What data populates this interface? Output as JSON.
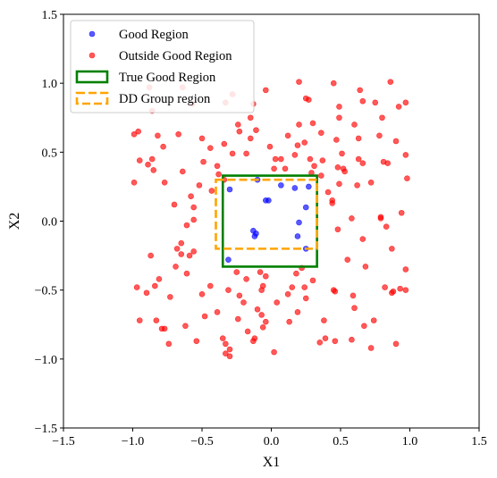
{
  "chart_data": {
    "type": "scatter",
    "title": "",
    "xlabel": "X1",
    "ylabel": "X2",
    "xlim": [
      -1.5,
      1.5
    ],
    "ylim": [
      -1.5,
      1.5
    ],
    "xticks": [
      "−1.5",
      "−1.0",
      "−0.5",
      "0.0",
      "0.5",
      "1.0",
      "1.5"
    ],
    "yticks": [
      "−1.5",
      "−1.0",
      "−0.5",
      "0.0",
      "0.5",
      "1.0",
      "1.5"
    ],
    "xtick_values": [
      -1.5,
      -1.0,
      -0.5,
      0.0,
      0.5,
      1.0,
      1.5
    ],
    "ytick_values": [
      -1.5,
      -1.0,
      -0.5,
      0.0,
      0.5,
      1.0,
      1.5
    ],
    "grid": false,
    "legend_position": "top-left",
    "legend": [
      {
        "label": "Good Region",
        "kind": "marker",
        "color": "#0000ff"
      },
      {
        "label": "Outside Good Region",
        "kind": "marker",
        "color": "#ff0000"
      },
      {
        "label": "True Good Region",
        "kind": "solid-box",
        "color": "#008000"
      },
      {
        "label": "DD Group region",
        "kind": "dashed-box",
        "color": "#ffa500"
      }
    ],
    "regions": [
      {
        "name": "True Good Region",
        "style": "solid",
        "color": "#008000",
        "x": [
          -0.35,
          0.33
        ],
        "y": [
          -0.33,
          0.33
        ]
      },
      {
        "name": "DD Group region",
        "style": "dashed",
        "color": "#ffa500",
        "x": [
          -0.4,
          0.33
        ],
        "y": [
          -0.2,
          0.3
        ]
      }
    ],
    "series": [
      {
        "name": "Good Region",
        "color": "#0000ff",
        "points": [
          [
            -0.3,
            0.23
          ],
          [
            -0.1,
            0.3
          ],
          [
            0.07,
            0.26
          ],
          [
            0.17,
            0.24
          ],
          [
            0.27,
            0.25
          ],
          [
            0.25,
            0.1
          ],
          [
            -0.04,
            0.15
          ],
          [
            -0.02,
            0.15
          ],
          [
            0.2,
            -0.01
          ],
          [
            -0.13,
            -0.07
          ],
          [
            -0.12,
            -0.11
          ],
          [
            -0.11,
            -0.09
          ],
          [
            0.19,
            -0.11
          ],
          [
            0.25,
            -0.2
          ],
          [
            -0.31,
            -0.28
          ]
        ]
      },
      {
        "name": "Outside Good Region",
        "color": "#ff0000",
        "points": [
          [
            -0.88,
            0.97
          ],
          [
            -0.86,
            0.8
          ],
          [
            -0.64,
            0.97
          ],
          [
            -0.57,
            0.85
          ],
          [
            -0.33,
            0.86
          ],
          [
            -0.28,
            0.92
          ],
          [
            -0.13,
            0.85
          ],
          [
            -0.04,
            0.95
          ],
          [
            0.2,
            1.01
          ],
          [
            0.25,
            0.89
          ],
          [
            0.27,
            0.88
          ],
          [
            0.45,
            1.0
          ],
          [
            0.49,
            0.83
          ],
          [
            0.49,
            0.75
          ],
          [
            0.64,
            0.95
          ],
          [
            0.66,
            0.87
          ],
          [
            0.75,
            0.86
          ],
          [
            0.8,
            0.75
          ],
          [
            0.86,
            1.01
          ],
          [
            0.92,
            0.83
          ],
          [
            0.97,
            0.86
          ],
          [
            -0.99,
            0.63
          ],
          [
            -0.96,
            0.65
          ],
          [
            -0.82,
            0.62
          ],
          [
            -0.78,
            0.54
          ],
          [
            -0.67,
            0.63
          ],
          [
            -0.5,
            0.6
          ],
          [
            -0.24,
            0.7
          ],
          [
            -0.23,
            0.65
          ],
          [
            -0.15,
            0.75
          ],
          [
            -0.15,
            0.6
          ],
          [
            -0.11,
            0.66
          ],
          [
            0.2,
            0.7
          ],
          [
            0.3,
            0.71
          ],
          [
            0.36,
            0.64
          ],
          [
            0.47,
            0.59
          ],
          [
            0.51,
            0.49
          ],
          [
            0.63,
            0.6
          ],
          [
            0.78,
            0.62
          ],
          [
            0.9,
            0.58
          ],
          [
            -0.95,
            0.44
          ],
          [
            -0.89,
            0.41
          ],
          [
            -0.86,
            0.45
          ],
          [
            -0.85,
            0.37
          ],
          [
            -0.99,
            0.28
          ],
          [
            -0.49,
            0.43
          ],
          [
            -0.39,
            0.4
          ],
          [
            -0.28,
            0.49
          ],
          [
            -0.18,
            0.49
          ],
          [
            -0.01,
            0.54
          ],
          [
            0.03,
            0.45
          ],
          [
            0.07,
            0.45
          ],
          [
            0.19,
            0.55
          ],
          [
            0.28,
            0.45
          ],
          [
            0.31,
            0.4
          ],
          [
            0.37,
            0.44
          ],
          [
            0.48,
            0.39
          ],
          [
            0.53,
            0.36
          ],
          [
            0.63,
            0.45
          ],
          [
            0.66,
            0.42
          ],
          [
            0.81,
            0.43
          ],
          [
            0.84,
            0.42
          ],
          [
            0.97,
            0.48
          ],
          [
            0.98,
            0.31
          ],
          [
            -0.38,
            0.34
          ],
          [
            -0.34,
            0.3
          ],
          [
            0.02,
            0.38
          ],
          [
            0.1,
            0.38
          ],
          [
            0.29,
            0.35
          ],
          [
            0.36,
            0.33
          ],
          [
            0.52,
            0.38
          ],
          [
            -0.43,
            0.22
          ],
          [
            0.44,
            0.15
          ],
          [
            0.44,
            0.13
          ],
          [
            0.58,
            0.02
          ],
          [
            0.79,
            0.02
          ],
          [
            0.79,
            0.03
          ],
          [
            0.83,
            -0.04
          ],
          [
            0.94,
            0.06
          ],
          [
            -0.56,
            0.1
          ],
          [
            -0.56,
            0.01
          ],
          [
            -0.61,
            -0.03
          ],
          [
            -0.65,
            -0.16
          ],
          [
            -0.68,
            -0.2
          ],
          [
            -0.65,
            -0.24
          ],
          [
            -0.59,
            -0.25
          ],
          [
            -0.56,
            -0.22
          ],
          [
            -0.69,
            -0.33
          ],
          [
            -0.61,
            -0.38
          ],
          [
            -0.87,
            -0.25
          ],
          [
            -0.81,
            -0.42
          ],
          [
            -0.84,
            -0.47
          ],
          [
            -0.9,
            -0.52
          ],
          [
            -0.95,
            -0.72
          ],
          [
            -0.83,
            -0.72
          ],
          [
            -0.79,
            -0.78
          ],
          [
            -0.77,
            -0.78
          ],
          [
            -0.74,
            -0.89
          ],
          [
            -0.62,
            -0.76
          ],
          [
            -0.54,
            -0.87
          ],
          [
            -0.48,
            -0.69
          ],
          [
            -0.39,
            -0.66
          ],
          [
            -0.35,
            -0.85
          ],
          [
            -0.33,
            -0.89
          ],
          [
            -0.3,
            -0.93
          ],
          [
            -0.3,
            -0.98
          ],
          [
            -0.33,
            -0.96
          ],
          [
            -0.13,
            -0.87
          ],
          [
            -0.06,
            -0.77
          ],
          [
            0.02,
            -0.95
          ],
          [
            -0.07,
            -0.68
          ],
          [
            -0.1,
            -0.64
          ],
          [
            -0.04,
            -0.73
          ],
          [
            0.04,
            -0.59
          ],
          [
            0.13,
            -0.73
          ],
          [
            0.19,
            -0.66
          ],
          [
            0.25,
            -0.56
          ],
          [
            -0.08,
            -0.37
          ],
          [
            -0.04,
            -0.4
          ],
          [
            -0.07,
            -0.5
          ],
          [
            -0.23,
            -0.54
          ],
          [
            0.15,
            -0.48
          ],
          [
            0.24,
            -0.48
          ],
          [
            0.3,
            -0.43
          ],
          [
            0.45,
            -0.5
          ],
          [
            0.46,
            -0.51
          ],
          [
            0.38,
            -0.72
          ],
          [
            0.35,
            -0.88
          ],
          [
            0.39,
            -0.85
          ],
          [
            0.46,
            -0.87
          ],
          [
            0.59,
            -0.54
          ],
          [
            0.6,
            -0.63
          ],
          [
            0.58,
            -0.86
          ],
          [
            0.67,
            -0.76
          ],
          [
            0.74,
            -0.72
          ],
          [
            0.82,
            -0.48
          ],
          [
            0.87,
            -0.52
          ],
          [
            0.88,
            -0.51
          ],
          [
            0.93,
            -0.49
          ],
          [
            0.97,
            -0.35
          ],
          [
            0.97,
            -0.5
          ],
          [
            0.9,
            -0.89
          ],
          [
            0.72,
            -0.92
          ],
          [
            -0.24,
            -0.71
          ],
          [
            -0.17,
            -0.8
          ],
          [
            -0.12,
            -0.85
          ],
          [
            -0.06,
            -0.47
          ],
          [
            0.18,
            -0.38
          ],
          [
            0.12,
            -0.53
          ],
          [
            0.22,
            -0.34
          ],
          [
            -0.44,
            -0.47
          ],
          [
            -0.5,
            -0.53
          ],
          [
            -0.2,
            -0.59
          ],
          [
            -0.25,
            -0.37
          ],
          [
            -0.18,
            -0.42
          ],
          [
            -0.31,
            -0.5
          ],
          [
            -0.97,
            -0.48
          ],
          [
            -0.73,
            -0.55
          ],
          [
            0.55,
            -0.28
          ],
          [
            0.68,
            -0.33
          ],
          [
            0.87,
            -0.2
          ],
          [
            0.66,
            -0.13
          ],
          [
            0.48,
            -0.06
          ],
          [
            0.41,
            0.21
          ],
          [
            0.49,
            0.27
          ],
          [
            0.62,
            0.26
          ],
          [
            0.72,
            0.28
          ],
          [
            -0.52,
            0.26
          ],
          [
            -0.58,
            0.18
          ],
          [
            -0.7,
            0.12
          ],
          [
            -0.77,
            0.28
          ],
          [
            -0.64,
            0.36
          ],
          [
            0.17,
            0.48
          ],
          [
            0.24,
            0.57
          ],
          [
            0.12,
            0.62
          ],
          [
            -0.34,
            0.56
          ],
          [
            -0.44,
            0.53
          ],
          [
            0.6,
            0.7
          ]
        ]
      }
    ]
  }
}
